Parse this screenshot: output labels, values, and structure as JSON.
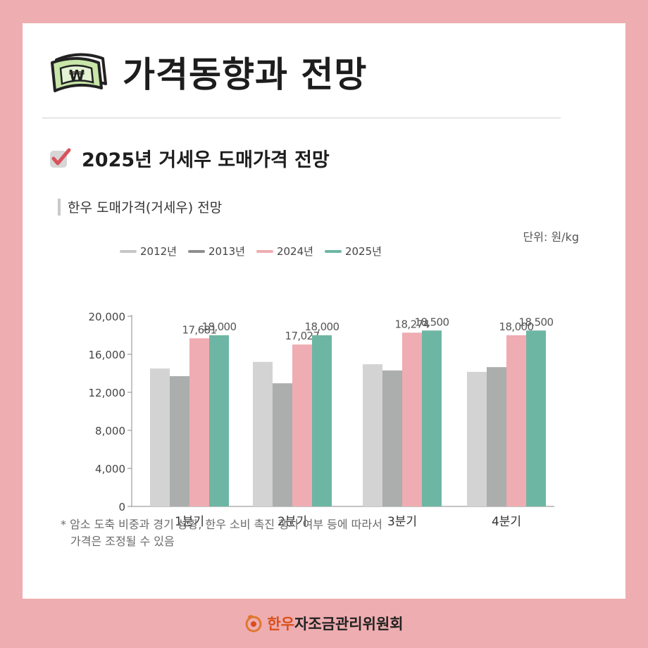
{
  "header": {
    "title": "가격동향과 전망",
    "icon": "money-bill-won-icon"
  },
  "section": {
    "title": "2025년 거세우 도매가격 전망",
    "icon": "checkbox-checked-icon"
  },
  "chart_data": {
    "type": "bar",
    "title": "한우 도매가격(거세우) 전망",
    "unit_note": "단위: 원/kg",
    "categories": [
      "1분기",
      "2분기",
      "3분기",
      "4분기"
    ],
    "ylim": [
      0,
      20000
    ],
    "yticks": [
      0,
      4000,
      8000,
      12000,
      16000,
      20000
    ],
    "ytick_labels": [
      "0",
      "4,000",
      "8,000",
      "12,000",
      "16,000",
      "20,000"
    ],
    "legend_position": "top-left",
    "grid": false,
    "series": [
      {
        "name": "2012년",
        "color": "#d3d3d3",
        "values": [
          14500,
          15200,
          14950,
          14150
        ]
      },
      {
        "name": "2013년",
        "color": "#abaeac",
        "values": [
          13700,
          12950,
          14300,
          14650
        ]
      },
      {
        "name": "2024년",
        "color": "#efacb2",
        "values": [
          17681,
          17027,
          18274,
          18000
        ],
        "labels": [
          "17,681",
          "17,027",
          "18,274",
          "18,000"
        ]
      },
      {
        "name": "2025년",
        "color": "#6eb6a4",
        "values": [
          18000,
          18000,
          18500,
          18500
        ],
        "labels": [
          "18,000",
          "18,000",
          "18,500",
          "18,500"
        ]
      }
    ],
    "legend_swatch_colors": [
      "#c6c6c6",
      "#8e8e8e",
      "#efacb2",
      "#6eb6a4"
    ]
  },
  "footnote": {
    "line1": "* 암소 도축 비중과 경기 상황, 한우 소비 촉진 행사 여부 등에 따라서",
    "line2": "가격은 조정될 수 있음"
  },
  "footer": {
    "brand_prefix": "한우",
    "brand_rest": "자조금관리위원회",
    "icon": "hanwoo-logo-icon"
  }
}
